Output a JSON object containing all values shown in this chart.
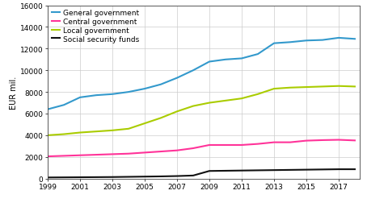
{
  "years": [
    1999,
    2000,
    2001,
    2002,
    2003,
    2004,
    2005,
    2006,
    2007,
    2008,
    2009,
    2010,
    2011,
    2012,
    2013,
    2014,
    2015,
    2016,
    2017,
    2018
  ],
  "general_government": [
    6400,
    6800,
    7500,
    7700,
    7800,
    8000,
    8300,
    8700,
    9300,
    10000,
    10800,
    11000,
    11100,
    11500,
    12500,
    12600,
    12750,
    12800,
    13000,
    12900
  ],
  "central_government": [
    2050,
    2100,
    2150,
    2200,
    2250,
    2300,
    2400,
    2500,
    2600,
    2800,
    3100,
    3100,
    3100,
    3200,
    3350,
    3350,
    3500,
    3550,
    3580,
    3520
  ],
  "local_government": [
    4000,
    4100,
    4250,
    4350,
    4450,
    4600,
    5100,
    5600,
    6200,
    6700,
    7000,
    7200,
    7400,
    7800,
    8300,
    8400,
    8450,
    8500,
    8550,
    8500
  ],
  "social_security": [
    100,
    110,
    120,
    130,
    140,
    160,
    180,
    200,
    230,
    280,
    700,
    720,
    740,
    760,
    780,
    800,
    820,
    840,
    860,
    860
  ],
  "colors": {
    "general_government": "#3399cc",
    "central_government": "#ff3399",
    "local_government": "#aacc00",
    "social_security": "#111111"
  },
  "legend_labels": [
    "General government",
    "Central government",
    "Local government",
    "Social security funds"
  ],
  "ylabel": "EUR mil.",
  "ylim": [
    0,
    16000
  ],
  "yticks": [
    0,
    2000,
    4000,
    6000,
    8000,
    10000,
    12000,
    14000,
    16000
  ],
  "xticks": [
    1999,
    2001,
    2003,
    2005,
    2007,
    2009,
    2011,
    2013,
    2015,
    2017
  ],
  "xlim": [
    1999,
    2018.3
  ],
  "background_color": "#ffffff",
  "grid_color": "#cccccc",
  "line_width": 1.5
}
